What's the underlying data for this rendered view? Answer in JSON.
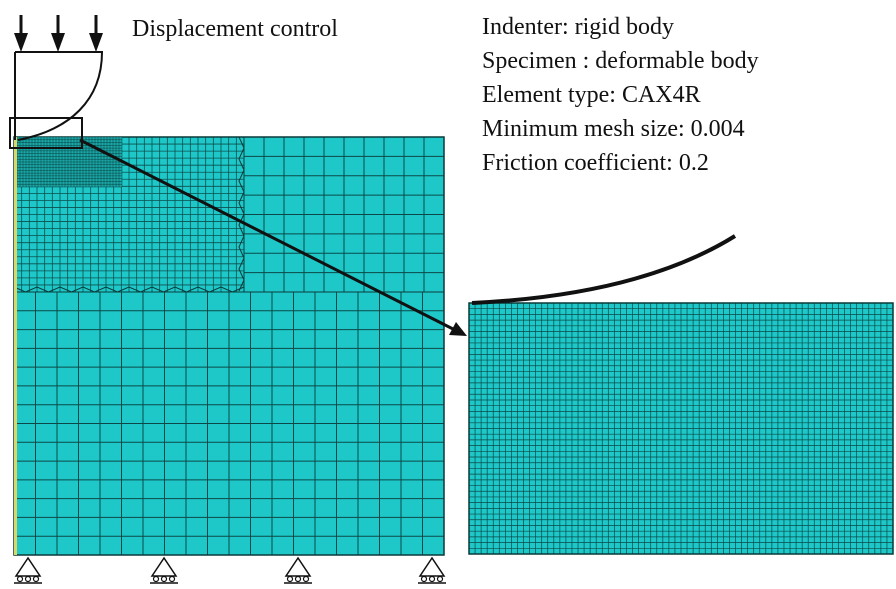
{
  "control_label": "Displacement control",
  "specs": [
    "Indenter: rigid body",
    "Specimen : deformable body",
    "Element type: CAX4R",
    "Minimum mesh size: 0.004",
    "Friction coefficient: 0.2"
  ],
  "colors": {
    "mesh_fill": "#1ec8c8",
    "mesh_line": "#0a3a3a",
    "outline": "#111111",
    "background": "#ffffff"
  },
  "icons": [
    "down-arrow-icon",
    "roller-support-icon",
    "zoom-arrow-icon"
  ]
}
